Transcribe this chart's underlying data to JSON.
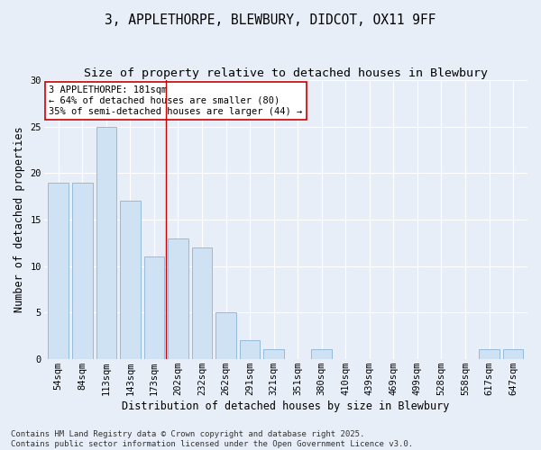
{
  "title_line1": "3, APPLETHORPE, BLEWBURY, DIDCOT, OX11 9FF",
  "title_line2": "Size of property relative to detached houses in Blewbury",
  "xlabel": "Distribution of detached houses by size in Blewbury",
  "ylabel": "Number of detached properties",
  "categories": [
    "54sqm",
    "84sqm",
    "113sqm",
    "143sqm",
    "173sqm",
    "202sqm",
    "232sqm",
    "262sqm",
    "291sqm",
    "321sqm",
    "351sqm",
    "380sqm",
    "410sqm",
    "439sqm",
    "469sqm",
    "499sqm",
    "528sqm",
    "558sqm",
    "617sqm",
    "647sqm"
  ],
  "values": [
    19,
    19,
    25,
    17,
    11,
    13,
    12,
    5,
    2,
    1,
    0,
    1,
    0,
    0,
    0,
    0,
    0,
    0,
    1,
    1
  ],
  "bar_color": "#cfe2f3",
  "bar_edge_color": "#8ab4d4",
  "vline_x": 4.5,
  "vline_color": "#cc0000",
  "annotation_text": "3 APPLETHORPE: 181sqm\n← 64% of detached houses are smaller (80)\n35% of semi-detached houses are larger (44) →",
  "annotation_box_color": "#ffffff",
  "annotation_box_edge": "#cc0000",
  "ylim": [
    0,
    30
  ],
  "yticks": [
    0,
    5,
    10,
    15,
    20,
    25,
    30
  ],
  "bg_color": "#e8eef8",
  "grid_color": "#ffffff",
  "footer": "Contains HM Land Registry data © Crown copyright and database right 2025.\nContains public sector information licensed under the Open Government Licence v3.0.",
  "title_fontsize": 10.5,
  "subtitle_fontsize": 9.5,
  "axis_label_fontsize": 8.5,
  "tick_fontsize": 7.5,
  "footer_fontsize": 6.5,
  "annotation_fontsize": 7.5
}
